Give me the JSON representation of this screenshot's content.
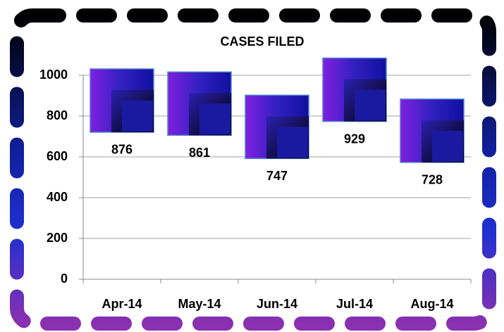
{
  "chart_data": {
    "type": "line",
    "title": "CASES FILED",
    "categories": [
      "Apr-14",
      "May-14",
      "Jun-14",
      "Jul-14",
      "Aug-14"
    ],
    "values": [
      876,
      861,
      747,
      929,
      728
    ],
    "marker": "square",
    "color": "#1a1aa0",
    "ylim": [
      0,
      1000
    ],
    "yticks": [
      0,
      200,
      400,
      600,
      800,
      1000
    ],
    "grid": true
  }
}
